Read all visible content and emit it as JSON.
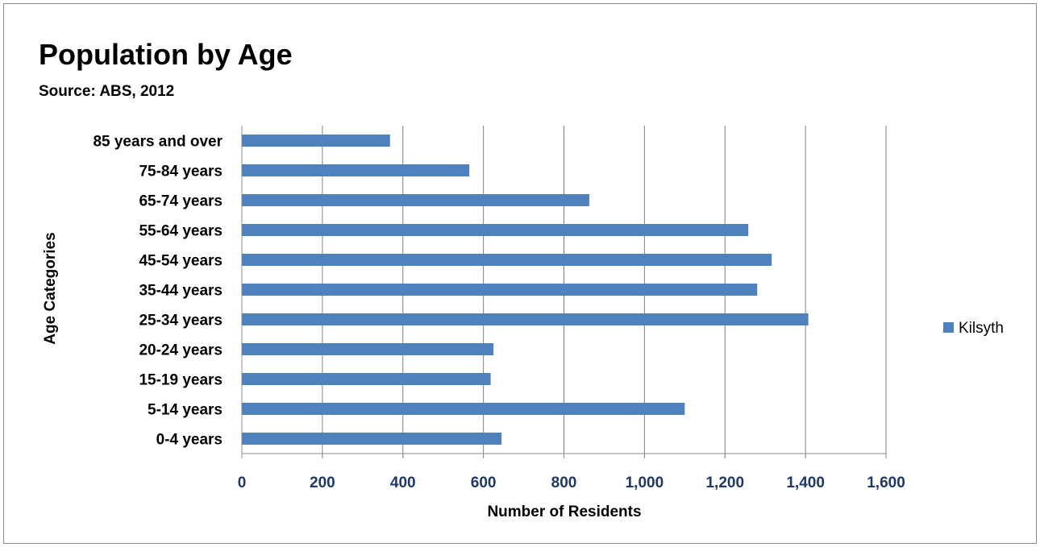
{
  "chart_data": {
    "type": "bar",
    "orientation": "horizontal",
    "title": "Population by Age",
    "subtitle": "Source: ABS, 2012",
    "xlabel": "Number of Residents",
    "ylabel": "Age Categories",
    "categories": [
      "0-4 years",
      "5-14 years",
      "15-19 years",
      "20-24 years",
      "25-34 years",
      "35-44 years",
      "45-54 years",
      "55-64 years",
      "65-74 years",
      "75-84 years",
      "85 years and over"
    ],
    "series": [
      {
        "name": "Kilsyth",
        "color": "#4f81bd",
        "values": [
          645,
          1100,
          618,
          625,
          1407,
          1280,
          1316,
          1258,
          863,
          565,
          368
        ]
      }
    ],
    "xlim": [
      0,
      1600
    ],
    "xticks": [
      0,
      200,
      400,
      600,
      800,
      1000,
      1200,
      1400,
      1600
    ],
    "xtick_labels": [
      "0",
      "200",
      "400",
      "600",
      "800",
      "1,000",
      "1,200",
      "1,400",
      "1,600"
    ],
    "grid": "vertical",
    "legend": "right"
  }
}
